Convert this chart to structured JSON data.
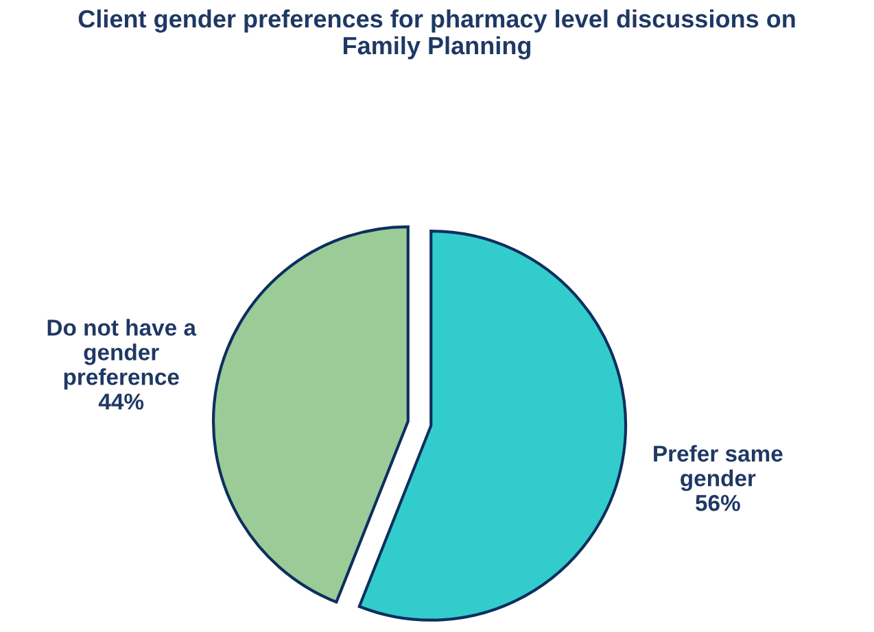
{
  "chart_data": {
    "type": "pie",
    "title": "Client gender preferences for pharmacy level discussions on\nFamily Planning",
    "categories": [
      "Prefer same\ngender",
      "Do not have a\ngender\npreference"
    ],
    "values": [
      56,
      44
    ],
    "value_labels": [
      "56%",
      "44%"
    ],
    "colors": [
      "#33cccc",
      "#9bcb97"
    ]
  }
}
